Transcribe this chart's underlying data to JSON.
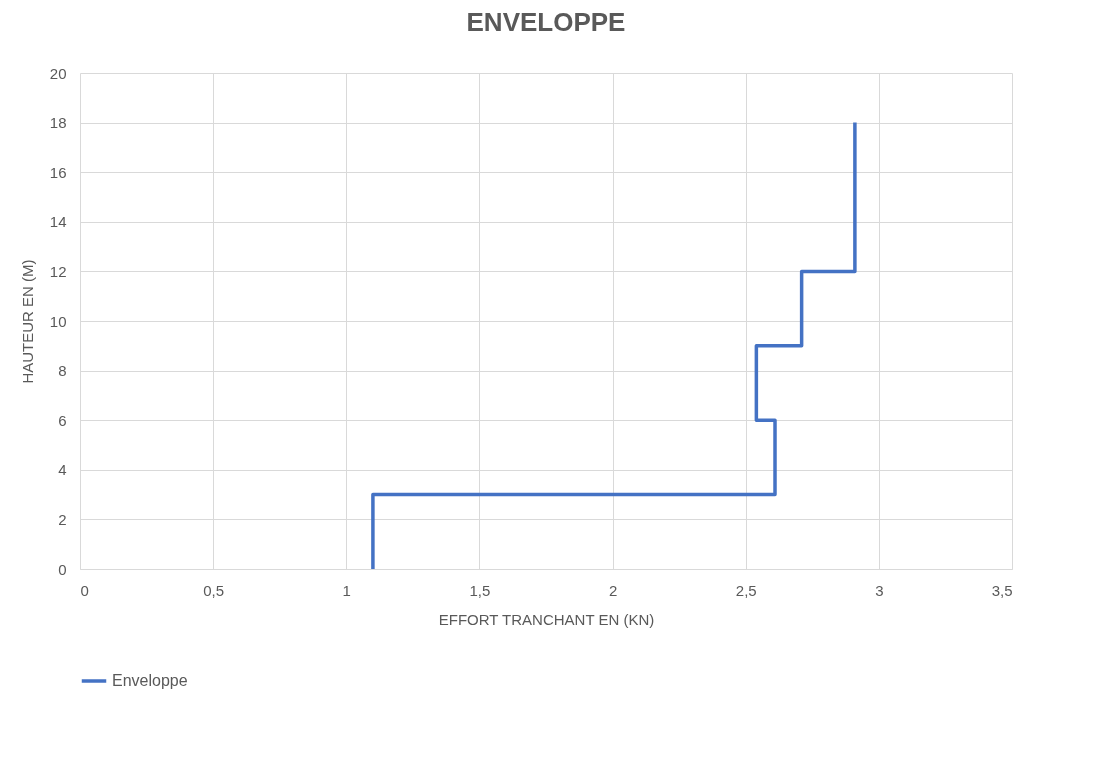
{
  "chart_data": {
    "type": "line",
    "title": "ENVELOPPE",
    "xlabel": "EFFORT TRANCHANT EN (KN)",
    "ylabel": "HAUTEUR EN (M)",
    "x": [
      1.1,
      1.1,
      2.61,
      2.61,
      2.54,
      2.54,
      2.71,
      2.71,
      2.91,
      2.91
    ],
    "series": [
      {
        "name": "Enveloppe",
        "color": "#4472c4",
        "values": [
          0,
          3,
          3,
          6,
          6,
          9,
          9,
          12,
          12,
          18
        ]
      }
    ],
    "xlim": [
      0,
      3.5
    ],
    "xticks": [
      0,
      {
        "value": 0.5,
        "label": "0,5"
      },
      1,
      {
        "value": 1.5,
        "label": "1,5"
      },
      2,
      {
        "value": 2.5,
        "label": "2,5"
      },
      3,
      {
        "value": 3.5,
        "label": "3,5"
      }
    ],
    "ylim": [
      0,
      20
    ],
    "yticks": [
      0,
      2,
      4,
      6,
      8,
      10,
      12,
      14,
      16,
      18,
      20
    ],
    "grid": true,
    "legend": "bottom"
  }
}
